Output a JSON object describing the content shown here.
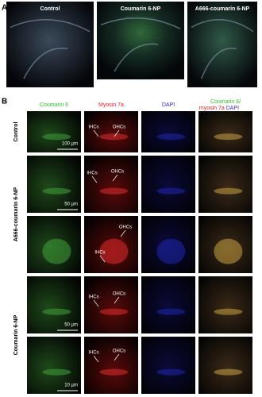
{
  "panel_a": {
    "label": "A",
    "images": [
      "Control",
      "Coumarin 6-NP",
      "A666-coumarin 6-NP"
    ]
  },
  "panel_b": {
    "label": "B",
    "columns": [
      "Coumarin 6",
      "Myosin 7a",
      "DAPI"
    ],
    "merge_header": [
      "Coumarin 6/",
      "myosin 7a",
      "DAPI"
    ],
    "row_groups": [
      "Control",
      "A666-coumarin 6-NP",
      "Coumarin 6-NP"
    ],
    "rows": [
      {
        "scale_bar": "100 µm",
        "cell_labels": [
          "IHCs",
          "OHCs"
        ]
      },
      {
        "scale_bar": "50 µm",
        "cell_labels": [
          "IHCs",
          "OHCs"
        ]
      },
      {
        "cell_labels": [
          "OHCs",
          "IHCs"
        ]
      },
      {
        "scale_bar": "50 µm",
        "cell_labels": [
          "IHCs",
          "OHCs"
        ]
      },
      {
        "scale_bar": "10 µm",
        "cell_labels": [
          "IHCs",
          "OHCs"
        ]
      }
    ]
  }
}
